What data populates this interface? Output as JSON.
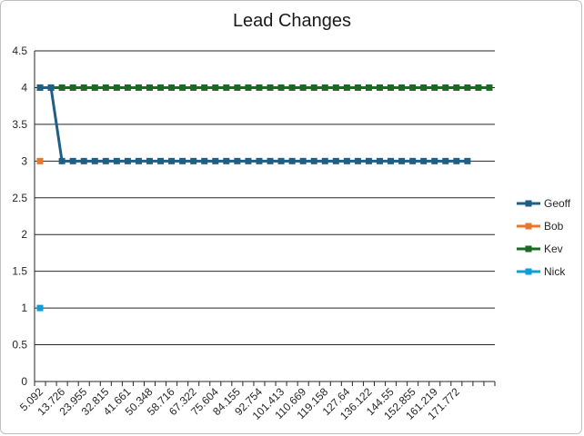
{
  "chart_data": {
    "type": "line",
    "title": "Lead Changes",
    "xlabel": "",
    "ylabel": "",
    "ylim": [
      0,
      4.5
    ],
    "yticks": [
      "0",
      "0.5",
      "1",
      "1.5",
      "2",
      "2.5",
      "3",
      "3.5",
      "4",
      "4.5"
    ],
    "ytick_values": [
      0,
      0.5,
      1,
      1.5,
      2,
      2.5,
      3,
      3.5,
      4,
      4.5
    ],
    "xtick_labels": [
      "5.092",
      "13.726",
      "23.955",
      "32.815",
      "41.661",
      "50.348",
      "58.716",
      "67.322",
      "75.604",
      "84.155",
      "92.754",
      "101.413",
      "110.669",
      "119.158",
      "127.64",
      "136.122",
      "144.55",
      "152.855",
      "161.219",
      "171.772"
    ],
    "category_count": 42,
    "grid": true,
    "legend_position": "right",
    "series": [
      {
        "name": "Geoff",
        "color": "#1f5f86",
        "values": [
          4,
          4,
          3,
          3,
          3,
          3,
          3,
          3,
          3,
          3,
          3,
          3,
          3,
          3,
          3,
          3,
          3,
          3,
          3,
          3,
          3,
          3,
          3,
          3,
          3,
          3,
          3,
          3,
          3,
          3,
          3,
          3,
          3,
          3,
          3,
          3,
          3,
          3,
          3,
          3
        ]
      },
      {
        "name": "Bob",
        "color": "#e8772e",
        "values": [
          3
        ]
      },
      {
        "name": "Kev",
        "color": "#196b24",
        "values": [
          4,
          4,
          4,
          4,
          4,
          4,
          4,
          4,
          4,
          4,
          4,
          4,
          4,
          4,
          4,
          4,
          4,
          4,
          4,
          4,
          4,
          4,
          4,
          4,
          4,
          4,
          4,
          4,
          4,
          4,
          4,
          4,
          4,
          4,
          4,
          4,
          4,
          4,
          4,
          4,
          4,
          4
        ]
      },
      {
        "name": "Nick",
        "color": "#0f9ed5",
        "values": [
          1
        ]
      }
    ]
  }
}
